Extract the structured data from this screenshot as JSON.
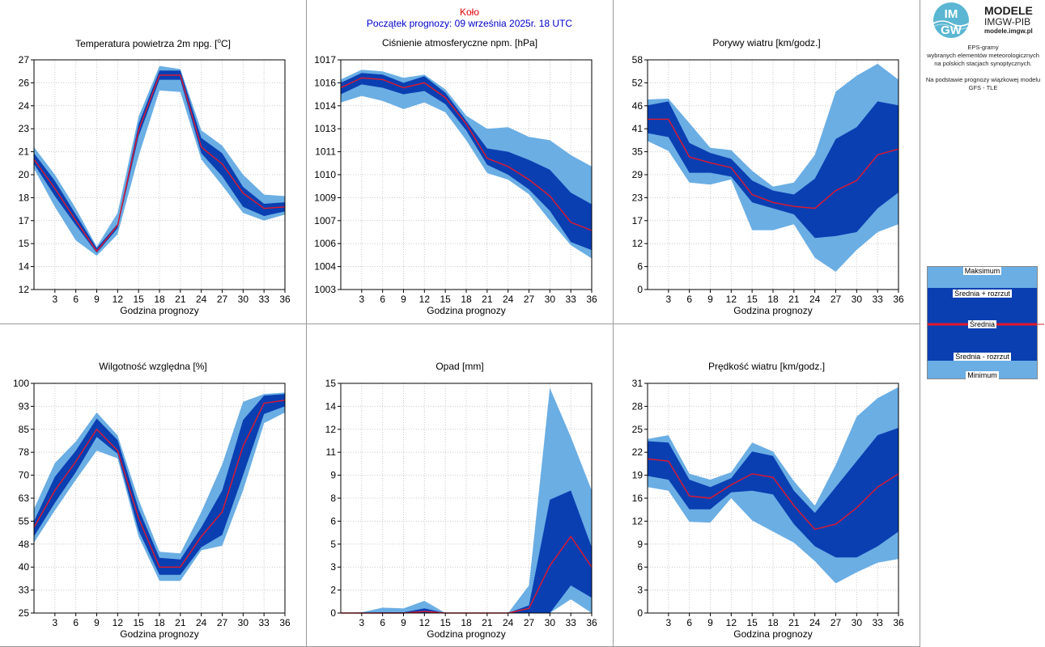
{
  "header": {
    "station": "Koło",
    "forecast_start": "Początek prognozy: 09 września 2025r. 18 UTC"
  },
  "sidebar": {
    "logo": {
      "line1": "MODELE",
      "line2": "IMGW-PIB",
      "line3": "modele.imgw.pl",
      "mark_top": "IM",
      "mark_bottom": "GW"
    },
    "description": [
      "EPS-gramy",
      "wybranych elementów meteorologicznych",
      "na polskich stacjach  synoptycznych.",
      "",
      "Na podstawie prognozy wiązkowej modelu",
      "GFS - TLE"
    ],
    "legend": {
      "max": "Maksimum",
      "mean_plus": "Średnia + rozrzut",
      "mean": "Średnia",
      "mean_minus": "Średnia - rozrzut",
      "min": "Minimum"
    }
  },
  "colors": {
    "outer_band": "#6aaee4",
    "inner_band": "#0a3fb2",
    "mean_line": "#e2182c",
    "grid": "#c8c8c8"
  },
  "chart_data": [
    {
      "id": "temp",
      "type": "area",
      "title": "Temperatura powietrza 2m npg. [°C]",
      "title_parts": [
        "Temperatura powietrza 2m npg. [",
        "o",
        "C]"
      ],
      "xlabel": "Godzina prognozy",
      "x": [
        0,
        3,
        6,
        9,
        12,
        15,
        18,
        21,
        24,
        27,
        30,
        33,
        36
      ],
      "xticks": [
        "3",
        "6",
        "9",
        "12",
        "15",
        "18",
        "21",
        "24",
        "27",
        "30",
        "33",
        "36"
      ],
      "xlim": [
        0,
        36
      ],
      "ylim": [
        12,
        27
      ],
      "yticks": [
        "12",
        "14",
        "15",
        "17",
        "18",
        "20",
        "21",
        "23",
        "24",
        "26",
        "27"
      ],
      "max": [
        21.3,
        19.5,
        17.3,
        14.8,
        17.0,
        23.3,
        26.6,
        26.4,
        22.4,
        21.4,
        19.5,
        18.2,
        18.1
      ],
      "mean_plus": [
        20.9,
        19.1,
        16.9,
        14.7,
        16.3,
        22.8,
        26.3,
        26.3,
        21.9,
        20.9,
        18.7,
        17.6,
        17.7
      ],
      "mean": [
        20.5,
        18.6,
        16.5,
        14.5,
        16.2,
        22.4,
        26.0,
        26.0,
        21.3,
        20.2,
        18.3,
        17.3,
        17.4
      ],
      "mean_minus": [
        20.2,
        18.1,
        16.2,
        14.4,
        16.0,
        22.0,
        25.7,
        25.7,
        20.9,
        19.4,
        17.4,
        16.8,
        17.1
      ],
      "min": [
        19.9,
        17.4,
        15.2,
        14.2,
        15.6,
        20.7,
        25.0,
        24.9,
        20.5,
        18.8,
        17.0,
        16.5,
        16.9
      ]
    },
    {
      "id": "pressure",
      "type": "area",
      "title": "Ciśnienie atmosferyczne npm. [hPa]",
      "xlabel": "Godzina prognozy",
      "x": [
        0,
        3,
        6,
        9,
        12,
        15,
        18,
        21,
        24,
        27,
        30,
        33,
        36
      ],
      "xticks": [
        "3",
        "6",
        "9",
        "12",
        "15",
        "18",
        "21",
        "24",
        "27",
        "30",
        "33",
        "36"
      ],
      "xlim": [
        0,
        36
      ],
      "ylim": [
        1003,
        1017
      ],
      "yticks": [
        "1003",
        "1004",
        "1006",
        "1007",
        "1009",
        "1010",
        "1011",
        "1013",
        "1014",
        "1016",
        "1017"
      ],
      "max": [
        1015.8,
        1016.4,
        1016.3,
        1015.9,
        1016.1,
        1015.2,
        1013.6,
        1012.8,
        1012.9,
        1012.3,
        1012.1,
        1011.2,
        1010.5
      ],
      "mean_plus": [
        1015.6,
        1016.2,
        1016.1,
        1015.6,
        1016.0,
        1015.0,
        1013.3,
        1011.6,
        1011.4,
        1010.9,
        1010.3,
        1008.9,
        1008.2
      ],
      "mean": [
        1015.3,
        1015.9,
        1015.8,
        1015.3,
        1015.6,
        1014.7,
        1013.1,
        1011.0,
        1010.5,
        1009.7,
        1008.7,
        1007.1,
        1006.6
      ],
      "mean_minus": [
        1014.9,
        1015.5,
        1015.3,
        1014.9,
        1015.1,
        1014.3,
        1012.7,
        1010.6,
        1010.0,
        1009.1,
        1007.8,
        1005.9,
        1005.4
      ],
      "min": [
        1014.4,
        1014.8,
        1014.5,
        1014.0,
        1014.4,
        1013.8,
        1012.1,
        1010.1,
        1009.7,
        1008.8,
        1007.2,
        1005.7,
        1004.9
      ]
    },
    {
      "id": "gusts",
      "type": "area",
      "title": "Porywy wiatru [km/godz.]",
      "xlabel": "Godzina prognozy",
      "x": [
        0,
        3,
        6,
        9,
        12,
        15,
        18,
        21,
        24,
        27,
        30,
        33,
        36
      ],
      "xticks": [
        "3",
        "6",
        "9",
        "12",
        "15",
        "18",
        "21",
        "24",
        "27",
        "30",
        "33",
        "36"
      ],
      "xlim": [
        0,
        36
      ],
      "ylim": [
        0,
        58
      ],
      "yticks": [
        "0",
        "6",
        "12",
        "17",
        "23",
        "29",
        "35",
        "41",
        "46",
        "52",
        "58"
      ],
      "max": [
        48.0,
        48.2,
        42.0,
        35.8,
        35.2,
        30.0,
        26.0,
        27.0,
        34.0,
        50.0,
        54.0,
        57.0,
        53.0
      ],
      "mean_plus": [
        46.5,
        47.5,
        37.0,
        34.5,
        33.0,
        27.5,
        25.0,
        24.0,
        28.0,
        38.0,
        41.0,
        47.5,
        46.5
      ],
      "mean": [
        43.0,
        43.0,
        33.5,
        32.0,
        30.8,
        24.0,
        22.0,
        21.0,
        20.5,
        25.0,
        27.5,
        34.0,
        35.5
      ],
      "mean_minus": [
        39.5,
        38.5,
        29.5,
        29.5,
        28.5,
        22.0,
        20.5,
        19.0,
        13.0,
        13.5,
        14.5,
        20.5,
        24.5
      ],
      "min": [
        37.5,
        35.0,
        27.0,
        26.5,
        27.8,
        15.0,
        15.0,
        16.5,
        8.0,
        4.5,
        10.0,
        14.5,
        16.5
      ]
    },
    {
      "id": "humidity",
      "type": "area",
      "title": "Wilgotność względna [%]",
      "xlabel": "Godzina prognozy",
      "x": [
        0,
        3,
        6,
        9,
        12,
        15,
        18,
        21,
        24,
        27,
        30,
        33,
        36
      ],
      "xticks": [
        "3",
        "6",
        "9",
        "12",
        "15",
        "18",
        "21",
        "24",
        "27",
        "30",
        "33",
        "36"
      ],
      "xlim": [
        0,
        36
      ],
      "ylim": [
        25,
        100
      ],
      "yticks": [
        "25",
        "33",
        "40",
        "48",
        "55",
        "63",
        "70",
        "78",
        "85",
        "93",
        "100"
      ],
      "max": [
        59.0,
        74.0,
        81.0,
        90.5,
        83.0,
        62.0,
        45.0,
        44.5,
        58.0,
        73.5,
        94.0,
        96.5,
        97.0
      ],
      "mean_plus": [
        55.0,
        69.5,
        78.0,
        88.5,
        81.5,
        59.0,
        43.0,
        42.5,
        53.0,
        65.0,
        88.0,
        96.0,
        96.5
      ],
      "mean": [
        53.0,
        65.0,
        74.5,
        85.0,
        78.0,
        56.0,
        40.0,
        40.0,
        50.0,
        58.0,
        79.5,
        93.5,
        94.5
      ],
      "mean_minus": [
        50.0,
        61.0,
        71.0,
        82.5,
        77.0,
        52.0,
        37.5,
        37.5,
        46.5,
        50.5,
        70.0,
        90.0,
        92.5
      ],
      "min": [
        48.0,
        58.5,
        68.5,
        78.0,
        75.5,
        50.0,
        35.5,
        35.5,
        45.5,
        47.0,
        65.0,
        87.0,
        90.5
      ]
    },
    {
      "id": "precip",
      "type": "area",
      "title": "Opad [mm]",
      "xlabel": "Godzina prognozy",
      "x": [
        0,
        3,
        6,
        9,
        12,
        15,
        18,
        21,
        24,
        27,
        30,
        33,
        36
      ],
      "xticks": [
        "3",
        "6",
        "9",
        "12",
        "15",
        "18",
        "21",
        "24",
        "27",
        "30",
        "33",
        "36"
      ],
      "xlim": [
        0,
        36
      ],
      "ylim": [
        0,
        15
      ],
      "yticks": [
        "0",
        "2",
        "3",
        "5",
        "6",
        "8",
        "9",
        "11",
        "12",
        "14",
        "15"
      ],
      "max": [
        0,
        0.05,
        0.35,
        0.3,
        0.8,
        0,
        0,
        0,
        0,
        1.8,
        14.7,
        11.5,
        8.0
      ],
      "mean_plus": [
        0,
        0,
        0.05,
        0.05,
        0.3,
        0,
        0,
        0,
        0,
        0.5,
        7.4,
        8.0,
        4.3
      ],
      "mean": [
        0,
        0,
        0,
        0,
        0.1,
        0,
        0,
        0,
        0,
        0.3,
        3.1,
        5.0,
        3.0
      ],
      "mean_minus": [
        0,
        0,
        0,
        0,
        0,
        0,
        0,
        0,
        0,
        0,
        0,
        1.8,
        1.0
      ],
      "min": [
        0,
        0,
        0,
        0,
        0,
        0,
        0,
        0,
        0,
        0,
        0,
        0.9,
        0
      ]
    },
    {
      "id": "wind",
      "type": "area",
      "title": "Prędkość wiatru [km/godz.]",
      "xlabel": "Godzina prognozy",
      "x": [
        0,
        3,
        6,
        9,
        12,
        15,
        18,
        21,
        24,
        27,
        30,
        33,
        36
      ],
      "xticks": [
        "3",
        "6",
        "9",
        "12",
        "15",
        "18",
        "21",
        "24",
        "27",
        "30",
        "33",
        "36"
      ],
      "xlim": [
        0,
        36
      ],
      "ylim": [
        0,
        31
      ],
      "yticks": [
        "0",
        "3",
        "6",
        "9",
        "12",
        "16",
        "19",
        "22",
        "25",
        "28",
        "31"
      ],
      "max": [
        23.5,
        24.0,
        18.8,
        18.0,
        19.0,
        23.0,
        21.8,
        17.8,
        14.5,
        20.0,
        26.5,
        29.0,
        30.5
      ],
      "mean_plus": [
        23.2,
        23.0,
        18.0,
        17.0,
        18.2,
        21.8,
        21.2,
        16.5,
        13.5,
        17.0,
        20.5,
        24.0,
        25.0
      ],
      "mean": [
        20.8,
        20.5,
        15.8,
        15.5,
        17.3,
        18.8,
        18.3,
        14.5,
        11.3,
        12.0,
        14.2,
        17.0,
        18.8
      ],
      "mean_minus": [
        18.5,
        18.0,
        14.0,
        14.0,
        16.3,
        16.5,
        16.0,
        12.0,
        9.0,
        7.5,
        7.5,
        9.0,
        11.0
      ],
      "min": [
        17.0,
        16.5,
        12.3,
        12.2,
        15.5,
        12.5,
        11.0,
        9.5,
        7.0,
        4.0,
        5.5,
        6.8,
        7.3
      ]
    }
  ]
}
